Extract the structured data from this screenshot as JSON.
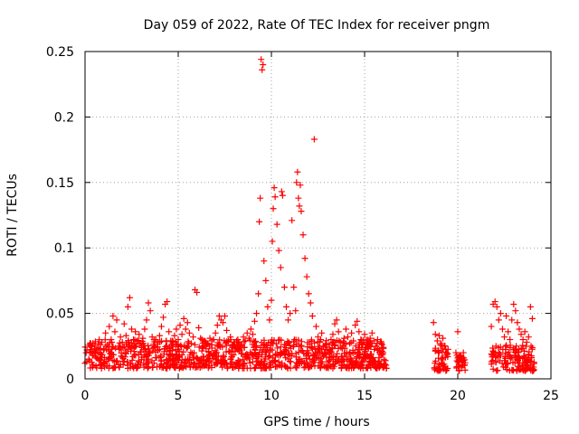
{
  "chart_data": {
    "type": "scatter",
    "title": "Day 059 of 2022, Rate Of TEC Index for receiver pngm",
    "xlabel": "GPS time / hours",
    "ylabel": "ROTI / TECUs",
    "xlim": [
      0,
      25
    ],
    "ylim": [
      0,
      0.25
    ],
    "xticks": [
      0,
      5,
      10,
      15,
      20,
      25
    ],
    "xtick_labels": [
      "0",
      "5",
      "10",
      "15",
      "20",
      "25"
    ],
    "yticks": [
      0,
      0.05,
      0.1,
      0.15,
      0.2,
      0.25
    ],
    "ytick_labels": [
      "0",
      "0.05",
      "0.1",
      "0.15",
      "0.2",
      "0.25"
    ],
    "grid": true,
    "marker": "plus",
    "color": "#ff0000",
    "series": [
      {
        "name": "ROTI",
        "points": [
          [
            0.0,
            0.012
          ],
          [
            0.1,
            0.022
          ],
          [
            0.2,
            0.015
          ],
          [
            0.3,
            0.025
          ],
          [
            0.4,
            0.018
          ],
          [
            0.5,
            0.021
          ],
          [
            0.6,
            0.016
          ],
          [
            0.7,
            0.024
          ],
          [
            0.8,
            0.019
          ],
          [
            0.9,
            0.028
          ],
          [
            1.0,
            0.022
          ],
          [
            1.1,
            0.035
          ],
          [
            1.2,
            0.026
          ],
          [
            1.3,
            0.04
          ],
          [
            1.4,
            0.03
          ],
          [
            1.5,
            0.048
          ],
          [
            1.6,
            0.036
          ],
          [
            1.7,
            0.045
          ],
          [
            1.8,
            0.025
          ],
          [
            1.9,
            0.032
          ],
          [
            2.0,
            0.028
          ],
          [
            2.1,
            0.042
          ],
          [
            2.2,
            0.033
          ],
          [
            2.3,
            0.055
          ],
          [
            2.4,
            0.062
          ],
          [
            2.5,
            0.038
          ],
          [
            2.6,
            0.03
          ],
          [
            2.7,
            0.036
          ],
          [
            2.8,
            0.029
          ],
          [
            2.9,
            0.034
          ],
          [
            3.0,
            0.027
          ],
          [
            3.1,
            0.031
          ],
          [
            3.2,
            0.038
          ],
          [
            3.3,
            0.045
          ],
          [
            3.4,
            0.058
          ],
          [
            3.5,
            0.052
          ],
          [
            3.6,
            0.032
          ],
          [
            3.7,
            0.025
          ],
          [
            3.8,
            0.03
          ],
          [
            3.9,
            0.028
          ],
          [
            4.0,
            0.033
          ],
          [
            4.1,
            0.04
          ],
          [
            4.2,
            0.047
          ],
          [
            4.3,
            0.057
          ],
          [
            4.4,
            0.059
          ],
          [
            4.5,
            0.036
          ],
          [
            4.6,
            0.029
          ],
          [
            4.7,
            0.025
          ],
          [
            4.8,
            0.033
          ],
          [
            4.9,
            0.038
          ],
          [
            5.0,
            0.03
          ],
          [
            5.1,
            0.041
          ],
          [
            5.2,
            0.034
          ],
          [
            5.3,
            0.046
          ],
          [
            5.4,
            0.038
          ],
          [
            5.5,
            0.043
          ],
          [
            5.6,
            0.035
          ],
          [
            5.7,
            0.027
          ],
          [
            5.8,
            0.032
          ],
          [
            5.9,
            0.068
          ],
          [
            6.0,
            0.066
          ],
          [
            6.1,
            0.039
          ],
          [
            6.2,
            0.031
          ],
          [
            6.3,
            0.025
          ],
          [
            6.4,
            0.029
          ],
          [
            6.5,
            0.023
          ],
          [
            6.6,
            0.027
          ],
          [
            6.7,
            0.031
          ],
          [
            6.8,
            0.026
          ],
          [
            6.9,
            0.03
          ],
          [
            7.0,
            0.035
          ],
          [
            7.1,
            0.041
          ],
          [
            7.2,
            0.048
          ],
          [
            7.3,
            0.045
          ],
          [
            7.4,
            0.043
          ],
          [
            7.5,
            0.048
          ],
          [
            7.6,
            0.037
          ],
          [
            7.7,
            0.029
          ],
          [
            7.8,
            0.032
          ],
          [
            7.9,
            0.026
          ],
          [
            8.0,
            0.028
          ],
          [
            8.1,
            0.024
          ],
          [
            8.2,
            0.03
          ],
          [
            8.3,
            0.027
          ],
          [
            8.4,
            0.025
          ],
          [
            8.5,
            0.032
          ],
          [
            8.6,
            0.029
          ],
          [
            8.7,
            0.035
          ],
          [
            8.8,
            0.031
          ],
          [
            8.9,
            0.038
          ],
          [
            9.0,
            0.034
          ],
          [
            9.1,
            0.044
          ],
          [
            9.2,
            0.05
          ],
          [
            9.3,
            0.065
          ],
          [
            9.35,
            0.12
          ],
          [
            9.4,
            0.138
          ],
          [
            9.45,
            0.244
          ],
          [
            9.5,
            0.236
          ],
          [
            9.55,
            0.24
          ],
          [
            9.6,
            0.09
          ],
          [
            9.7,
            0.075
          ],
          [
            9.8,
            0.055
          ],
          [
            9.9,
            0.045
          ],
          [
            10.0,
            0.06
          ],
          [
            10.05,
            0.105
          ],
          [
            10.1,
            0.13
          ],
          [
            10.15,
            0.146
          ],
          [
            10.2,
            0.139
          ],
          [
            10.3,
            0.118
          ],
          [
            10.4,
            0.098
          ],
          [
            10.5,
            0.085
          ],
          [
            10.55,
            0.143
          ],
          [
            10.6,
            0.14
          ],
          [
            10.7,
            0.07
          ],
          [
            10.8,
            0.055
          ],
          [
            10.9,
            0.045
          ],
          [
            11.0,
            0.05
          ],
          [
            11.1,
            0.121
          ],
          [
            11.2,
            0.07
          ],
          [
            11.3,
            0.052
          ],
          [
            11.35,
            0.15
          ],
          [
            11.4,
            0.158
          ],
          [
            11.45,
            0.138
          ],
          [
            11.5,
            0.132
          ],
          [
            11.55,
            0.148
          ],
          [
            11.6,
            0.128
          ],
          [
            11.7,
            0.11
          ],
          [
            11.8,
            0.092
          ],
          [
            11.9,
            0.078
          ],
          [
            12.0,
            0.065
          ],
          [
            12.1,
            0.058
          ],
          [
            12.2,
            0.048
          ],
          [
            12.3,
            0.183
          ],
          [
            12.4,
            0.04
          ],
          [
            12.5,
            0.032
          ],
          [
            12.6,
            0.028
          ],
          [
            12.7,
            0.035
          ],
          [
            12.8,
            0.025
          ],
          [
            12.9,
            0.02
          ],
          [
            13.0,
            0.022
          ],
          [
            13.1,
            0.026
          ],
          [
            13.2,
            0.03
          ],
          [
            13.3,
            0.034
          ],
          [
            13.4,
            0.042
          ],
          [
            13.5,
            0.045
          ],
          [
            13.6,
            0.036
          ],
          [
            13.7,
            0.028
          ],
          [
            13.8,
            0.023
          ],
          [
            13.9,
            0.031
          ],
          [
            14.0,
            0.038
          ],
          [
            14.1,
            0.032
          ],
          [
            14.2,
            0.027
          ],
          [
            14.3,
            0.035
          ],
          [
            14.4,
            0.029
          ],
          [
            14.5,
            0.041
          ],
          [
            14.6,
            0.044
          ],
          [
            14.7,
            0.036
          ],
          [
            14.8,
            0.03
          ],
          [
            14.9,
            0.026
          ],
          [
            15.0,
            0.034
          ],
          [
            15.1,
            0.028
          ],
          [
            15.2,
            0.024
          ],
          [
            15.3,
            0.031
          ],
          [
            15.4,
            0.035
          ],
          [
            15.5,
            0.029
          ],
          [
            15.6,
            0.025
          ],
          [
            15.7,
            0.03
          ],
          [
            15.8,
            0.022
          ],
          [
            15.9,
            0.027
          ],
          [
            16.0,
            0.024
          ],
          [
            18.7,
            0.043
          ],
          [
            18.8,
            0.034
          ],
          [
            18.9,
            0.029
          ],
          [
            19.0,
            0.033
          ],
          [
            19.1,
            0.027
          ],
          [
            19.2,
            0.031
          ],
          [
            19.3,
            0.025
          ],
          [
            19.4,
            0.02
          ],
          [
            19.9,
            0.02
          ],
          [
            20.0,
            0.036
          ],
          [
            20.1,
            0.018
          ],
          [
            20.2,
            0.015
          ],
          [
            20.3,
            0.02
          ],
          [
            21.8,
            0.04
          ],
          [
            21.9,
            0.057
          ],
          [
            22.0,
            0.059
          ],
          [
            22.1,
            0.055
          ],
          [
            22.2,
            0.045
          ],
          [
            22.3,
            0.05
          ],
          [
            22.4,
            0.038
          ],
          [
            22.5,
            0.032
          ],
          [
            22.6,
            0.048
          ],
          [
            22.7,
            0.036
          ],
          [
            22.8,
            0.03
          ],
          [
            22.9,
            0.045
          ],
          [
            23.0,
            0.057
          ],
          [
            23.1,
            0.052
          ],
          [
            23.2,
            0.043
          ],
          [
            23.3,
            0.038
          ],
          [
            23.4,
            0.034
          ],
          [
            23.5,
            0.03
          ],
          [
            23.6,
            0.036
          ],
          [
            23.7,
            0.028
          ],
          [
            23.8,
            0.032
          ],
          [
            23.9,
            0.055
          ],
          [
            24.0,
            0.046
          ]
        ]
      }
    ],
    "dense_bands": [
      {
        "x": [
          0.0,
          16.2
        ],
        "y": [
          0.008,
          0.03
        ]
      },
      {
        "x": [
          18.7,
          19.5
        ],
        "y": [
          0.006,
          0.026
        ]
      },
      {
        "x": [
          19.9,
          20.4
        ],
        "y": [
          0.006,
          0.018
        ]
      },
      {
        "x": [
          21.8,
          24.1
        ],
        "y": [
          0.006,
          0.026
        ]
      }
    ]
  }
}
